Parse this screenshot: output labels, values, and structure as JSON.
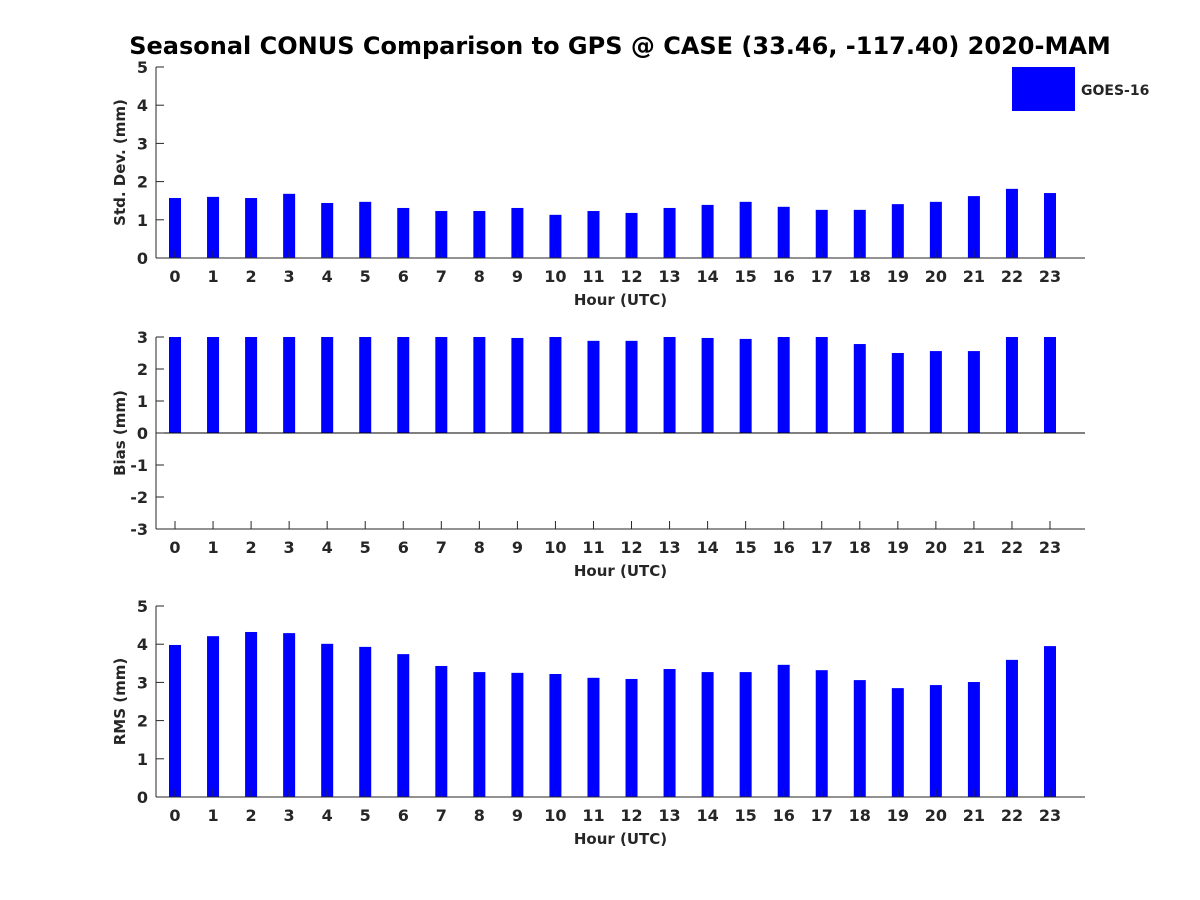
{
  "chart_data": {
    "title": "Seasonal CONUS Comparison to GPS @ CASE (33.46, -117.40) 2020-MAM",
    "legend": {
      "entries": [
        "GOES-16"
      ],
      "placement": "top-right",
      "color": "#0000ff"
    },
    "panels": [
      {
        "type": "bar",
        "ylabel": "Std. Dev. (mm)",
        "xlabel": "Hour (UTC)",
        "ylim": [
          0,
          5
        ],
        "yticks": [
          0,
          1,
          2,
          3,
          4,
          5
        ],
        "categories": [
          "0",
          "1",
          "2",
          "3",
          "4",
          "5",
          "6",
          "7",
          "8",
          "9",
          "10",
          "11",
          "12",
          "13",
          "14",
          "15",
          "16",
          "17",
          "18",
          "19",
          "20",
          "21",
          "22",
          "23"
        ],
        "series": [
          {
            "name": "GOES-16",
            "values": [
              1.57,
              1.6,
              1.57,
              1.68,
              1.44,
              1.47,
              1.31,
              1.23,
              1.23,
              1.31,
              1.13,
              1.23,
              1.18,
              1.31,
              1.39,
              1.47,
              1.34,
              1.26,
              1.26,
              1.41,
              1.47,
              1.62,
              1.81,
              1.7
            ]
          }
        ]
      },
      {
        "type": "bar",
        "ylabel": "Bias (mm)",
        "xlabel": "Hour (UTC)",
        "ylim": [
          -3,
          3
        ],
        "yticks": [
          -3,
          -2,
          -1,
          0,
          1,
          2,
          3
        ],
        "categories": [
          "0",
          "1",
          "2",
          "3",
          "4",
          "5",
          "6",
          "7",
          "8",
          "9",
          "10",
          "11",
          "12",
          "13",
          "14",
          "15",
          "16",
          "17",
          "18",
          "19",
          "20",
          "21",
          "22",
          "23"
        ],
        "series": [
          {
            "name": "GOES-16",
            "values": [
              3.0,
              3.0,
              3.0,
              3.0,
              3.0,
              3.0,
              3.0,
              3.0,
              3.0,
              2.97,
              3.0,
              2.88,
              2.88,
              3.0,
              2.97,
              2.94,
              3.0,
              3.0,
              2.78,
              2.5,
              2.56,
              2.56,
              3.0,
              3.0
            ]
          }
        ]
      },
      {
        "type": "bar",
        "ylabel": "RMS (mm)",
        "xlabel": "Hour (UTC)",
        "ylim": [
          0,
          5
        ],
        "yticks": [
          0,
          1,
          2,
          3,
          4,
          5
        ],
        "categories": [
          "0",
          "1",
          "2",
          "3",
          "4",
          "5",
          "6",
          "7",
          "8",
          "9",
          "10",
          "11",
          "12",
          "13",
          "14",
          "15",
          "16",
          "17",
          "18",
          "19",
          "20",
          "21",
          "22",
          "23"
        ],
        "series": [
          {
            "name": "GOES-16",
            "values": [
              3.98,
              4.21,
              4.32,
              4.29,
              4.01,
              3.93,
              3.74,
              3.43,
              3.27,
              3.25,
              3.22,
              3.12,
              3.09,
              3.35,
              3.27,
              3.27,
              3.46,
              3.32,
              3.06,
              2.85,
              2.93,
              3.01,
              3.59,
              3.95
            ]
          }
        ]
      }
    ]
  }
}
